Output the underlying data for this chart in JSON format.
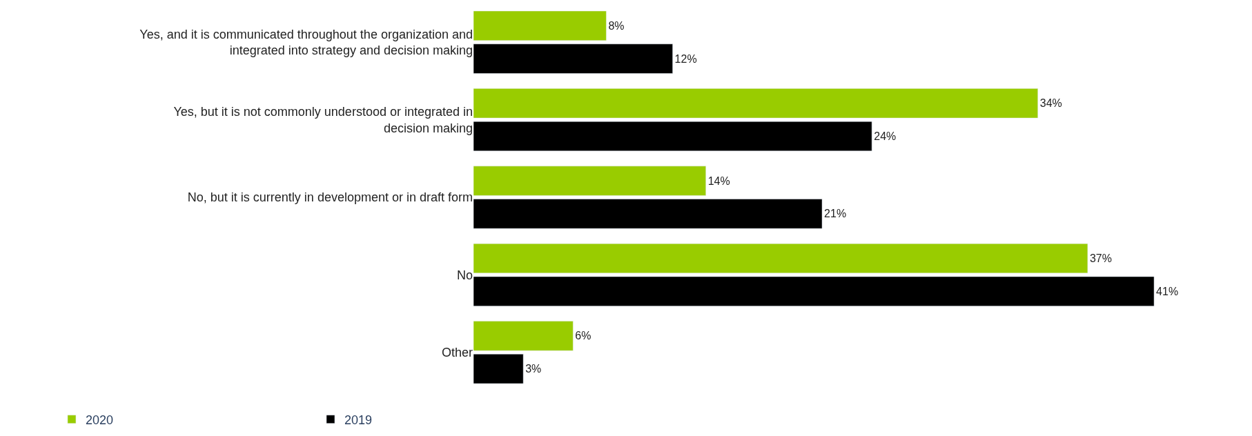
{
  "chart_data": {
    "type": "bar",
    "orientation": "horizontal",
    "categories": [
      "Yes, and it is communicated throughout the organization and integrated into strategy and decision making",
      "Yes, but it is not commonly understood or integrated in decision making",
      "No, but it is currently in development or in draft form",
      "No",
      "Other"
    ],
    "series": [
      {
        "name": "2020",
        "color": "#99cc00",
        "values": [
          8,
          34,
          14,
          37,
          6
        ],
        "value_labels": [
          "8%",
          "34%",
          "14%",
          "37%",
          "6%"
        ]
      },
      {
        "name": "2019",
        "color": "#000000",
        "values": [
          12,
          24,
          21,
          41,
          3
        ],
        "value_labels": [
          "12%",
          "24%",
          "21%",
          "41%",
          "3%"
        ]
      }
    ],
    "legend": "bottom left"
  }
}
